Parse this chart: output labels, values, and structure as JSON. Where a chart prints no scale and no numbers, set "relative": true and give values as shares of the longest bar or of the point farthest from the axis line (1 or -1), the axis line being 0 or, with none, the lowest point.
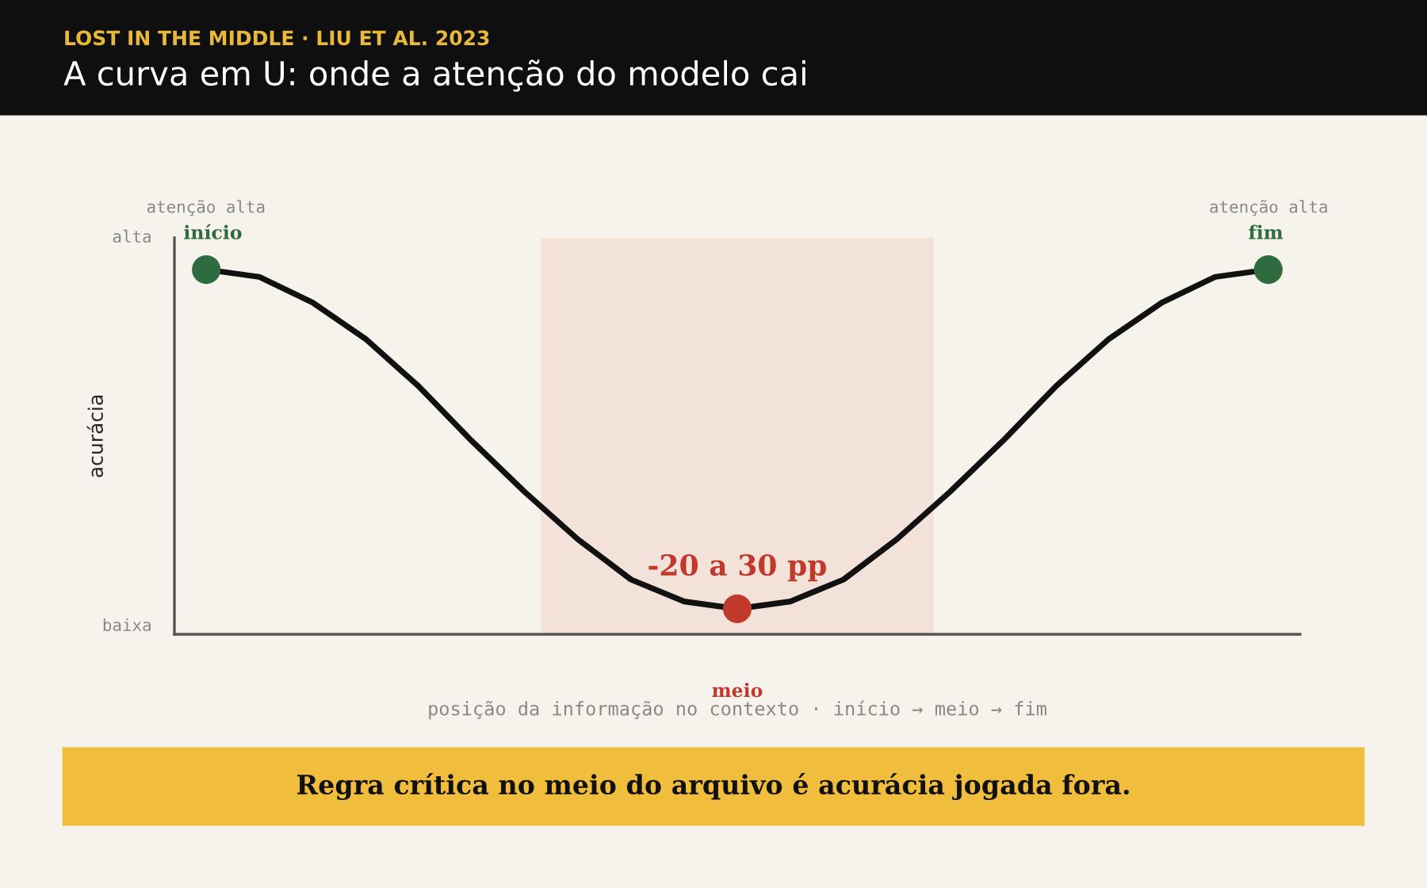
{
  "chart_data": {
    "type": "line",
    "relative": true,
    "title": "A curva em U: onde a atenção do modelo cai",
    "subtitle": "LOST IN THE MIDDLE · LIU ET AL. 2023",
    "xlabel": "posição da informação no contexto · início → meio → fim",
    "ylabel": "acurácia",
    "categories": [
      null,
      null,
      null,
      null,
      null,
      null,
      null,
      null,
      null,
      null,
      null,
      null,
      null,
      null,
      null,
      null,
      null,
      null,
      null,
      null,
      null
    ],
    "series": [
      {
        "type": "line",
        "color": "#111111",
        "line_style": "solid",
        "colors": [
          "#2e6b3e",
          null,
          null,
          null,
          null,
          null,
          null,
          null,
          null,
          null,
          "#c0392b",
          null,
          null,
          null,
          null,
          null,
          null,
          null,
          null,
          null,
          "#2e6b3e"
        ],
        "values": [
          1,
          0.98,
          0.91,
          0.81,
          0.68,
          0.53,
          0.39,
          0.26,
          0.15,
          0.09,
          0.07,
          0.09,
          0.15,
          0.26,
          0.39,
          0.53,
          0.68,
          0.81,
          0.91,
          0.98,
          1
        ]
      }
    ],
    "annotations": [
      "alta",
      "baixa",
      "atenção alta",
      "atenção alta",
      "início",
      "fim",
      "-20 a 30 pp",
      "meio",
      "Regra crítica no meio do arquivo é acurácia jogada fora."
    ],
    "grid": false,
    "legend": false
  }
}
